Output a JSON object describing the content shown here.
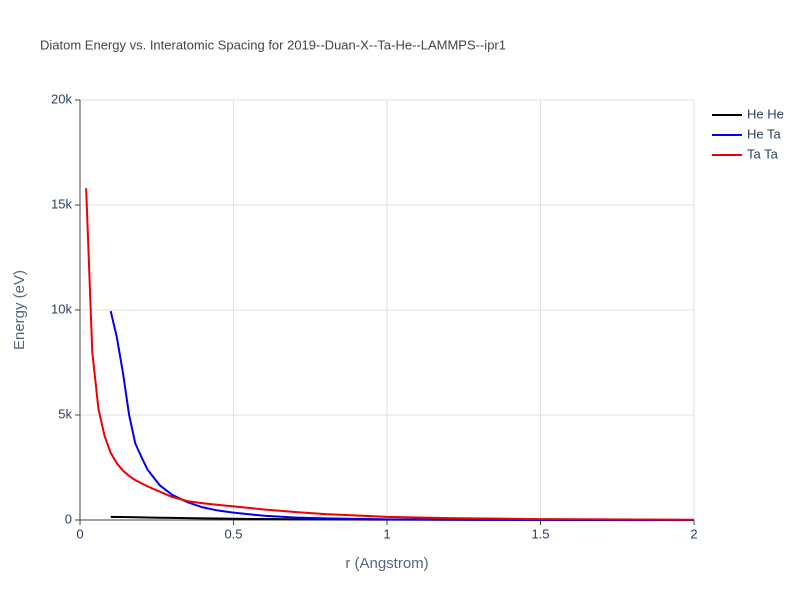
{
  "chart_data": {
    "type": "line",
    "title": "Diatom Energy vs. Interatomic Spacing for 2019--Duan-X--Ta-He--LAMMPS--ipr1",
    "xlabel": "r (Angstrom)",
    "ylabel": "Energy (eV)",
    "x": [
      0.02,
      0.04,
      0.06,
      0.08,
      0.1,
      0.12,
      0.14,
      0.16,
      0.18,
      0.2,
      0.22,
      0.26,
      0.3,
      0.35,
      0.4,
      0.45,
      0.5,
      0.6,
      0.7,
      0.8,
      1,
      1.2,
      1.5,
      2
    ],
    "series": [
      {
        "name": "He He",
        "color": "#000000",
        "values": [
          null,
          null,
          null,
          null,
          150,
          145,
          140,
          135,
          130,
          125,
          120,
          110,
          100,
          90,
          80,
          70,
          60,
          45,
          35,
          28,
          20,
          12,
          5,
          0
        ]
      },
      {
        "name": "He Ta",
        "color": "#0000ee",
        "values": [
          null,
          null,
          null,
          null,
          9950,
          8700,
          7000,
          5000,
          3650,
          3000,
          2400,
          1650,
          1200,
          850,
          600,
          450,
          350,
          200,
          120,
          80,
          30,
          15,
          5,
          0
        ]
      },
      {
        "name": "Ta Ta",
        "color": "#ee0000",
        "values": [
          15800,
          8000,
          5300,
          4000,
          3200,
          2700,
          2350,
          2100,
          1900,
          1750,
          1600,
          1350,
          1100,
          900,
          800,
          720,
          650,
          500,
          380,
          280,
          150,
          90,
          40,
          10
        ]
      }
    ],
    "xlim": [
      0,
      2
    ],
    "xticks": [
      0,
      0.5,
      1,
      1.5,
      2
    ],
    "ylim": [
      0,
      20000
    ],
    "yticks": [
      0,
      {
        "value": 5000,
        "label": "5k"
      },
      {
        "value": 10000,
        "label": "10k"
      },
      {
        "value": 15000,
        "label": "15k"
      },
      {
        "value": 20000,
        "label": "20k"
      }
    ],
    "grid": true,
    "legend": "top-right"
  }
}
